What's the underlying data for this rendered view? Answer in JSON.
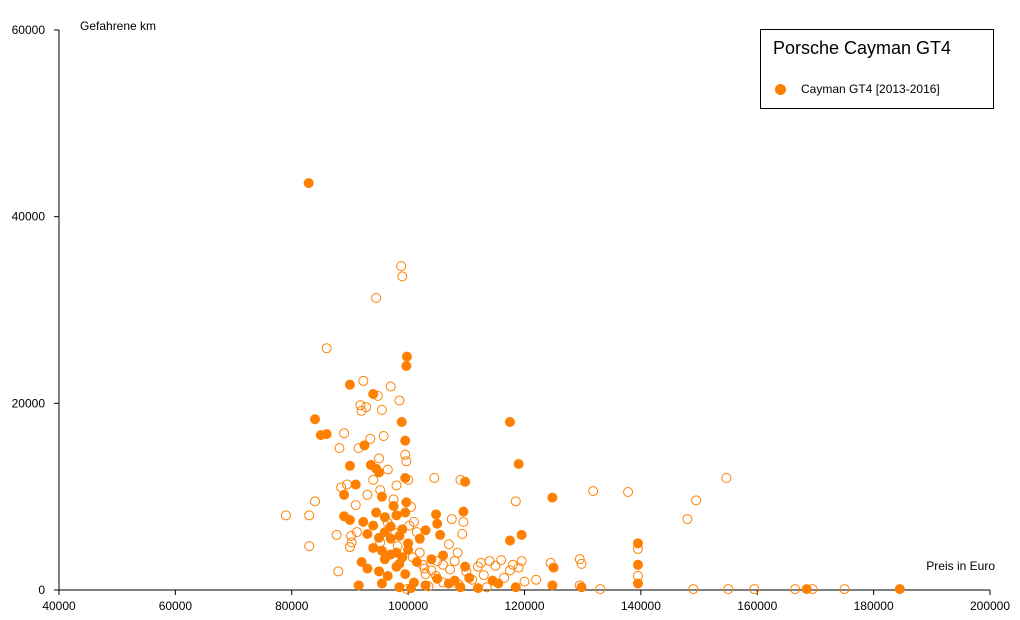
{
  "colors": {
    "series": "#ff8000",
    "axis": "#000000",
    "background": "#ffffff"
  },
  "chart_data": {
    "type": "scatter",
    "title": "Porsche Cayman GT4",
    "xlabel": "Preis in Euro",
    "ylabel": "Gefahrene km",
    "xlim": [
      40000,
      200000
    ],
    "ylim": [
      0,
      60000
    ],
    "xticks": [
      "40000",
      "60000",
      "80000",
      "100000",
      "120000",
      "140000",
      "160000",
      "180000",
      "200000"
    ],
    "yticks": [
      "0",
      "20000",
      "40000",
      "60000"
    ],
    "grid": false,
    "legend_position": "top-right",
    "series": [
      {
        "name": "Cayman GT4 [2013-2016]",
        "color": "#ff8000",
        "points_filled": [
          [
            82900,
            43600
          ],
          [
            99800,
            25000
          ],
          [
            99700,
            24000
          ],
          [
            90000,
            22000
          ],
          [
            94000,
            21000
          ],
          [
            84000,
            18300
          ],
          [
            98900,
            18000
          ],
          [
            117500,
            18000
          ],
          [
            85000,
            16600
          ],
          [
            86000,
            16700
          ],
          [
            99500,
            16000
          ],
          [
            92500,
            15500
          ],
          [
            90000,
            13300
          ],
          [
            93600,
            13400
          ],
          [
            94500,
            13000
          ],
          [
            119000,
            13500
          ],
          [
            99500,
            12000
          ],
          [
            95000,
            12600
          ],
          [
            89000,
            10200
          ],
          [
            91000,
            11300
          ],
          [
            109800,
            11600
          ],
          [
            95500,
            10000
          ],
          [
            99700,
            9400
          ],
          [
            97500,
            9000
          ],
          [
            124800,
            9900
          ],
          [
            89000,
            7900
          ],
          [
            90000,
            7500
          ],
          [
            92300,
            7300
          ],
          [
            94000,
            6900
          ],
          [
            96000,
            7800
          ],
          [
            98000,
            8000
          ],
          [
            99500,
            8300
          ],
          [
            104800,
            8100
          ],
          [
            105000,
            7100
          ],
          [
            109500,
            8400
          ],
          [
            93000,
            6000
          ],
          [
            95000,
            5600
          ],
          [
            96000,
            6200
          ],
          [
            97000,
            5500
          ],
          [
            98500,
            5800
          ],
          [
            100000,
            5000
          ],
          [
            102000,
            5500
          ],
          [
            103000,
            6400
          ],
          [
            105500,
            5900
          ],
          [
            117500,
            5300
          ],
          [
            119500,
            5900
          ],
          [
            94000,
            4500
          ],
          [
            95500,
            4200
          ],
          [
            97000,
            3800
          ],
          [
            98000,
            4000
          ],
          [
            99000,
            3500
          ],
          [
            101500,
            3000
          ],
          [
            104000,
            3300
          ],
          [
            106000,
            3700
          ],
          [
            108000,
            1000
          ],
          [
            109800,
            2500
          ],
          [
            114500,
            1000
          ],
          [
            125000,
            2400
          ],
          [
            139500,
            5000
          ],
          [
            139500,
            2700
          ],
          [
            93000,
            2300
          ],
          [
            95000,
            2000
          ],
          [
            96500,
            1500
          ],
          [
            98000,
            2500
          ],
          [
            99500,
            1700
          ],
          [
            101000,
            800
          ],
          [
            103000,
            500
          ],
          [
            105000,
            1200
          ],
          [
            107000,
            700
          ],
          [
            109000,
            300
          ],
          [
            110500,
            1300
          ],
          [
            112000,
            200
          ],
          [
            115500,
            700
          ],
          [
            118500,
            300
          ],
          [
            124800,
            500
          ],
          [
            129800,
            300
          ],
          [
            139500,
            700
          ],
          [
            91500,
            500
          ],
          [
            95500,
            700
          ],
          [
            98500,
            300
          ],
          [
            100500,
            200
          ],
          [
            168500,
            100
          ],
          [
            184500,
            100
          ],
          [
            97000,
            6800
          ],
          [
            99000,
            6500
          ],
          [
            96000,
            3300
          ],
          [
            100000,
            4300
          ],
          [
            92000,
            3000
          ],
          [
            94500,
            8300
          ],
          [
            98500,
            2800
          ]
        ],
        "points_hollow": [
          [
            79000,
            8000
          ],
          [
            83000,
            8000
          ],
          [
            83000,
            4700
          ],
          [
            84000,
            9500
          ],
          [
            86000,
            25900
          ],
          [
            87700,
            5900
          ],
          [
            88000,
            2000
          ],
          [
            88200,
            15200
          ],
          [
            88500,
            11000
          ],
          [
            89000,
            16800
          ],
          [
            89500,
            11300
          ],
          [
            90000,
            4600
          ],
          [
            90200,
            5800
          ],
          [
            90300,
            5100
          ],
          [
            91000,
            9100
          ],
          [
            91200,
            6200
          ],
          [
            91500,
            15200
          ],
          [
            91800,
            19800
          ],
          [
            92000,
            19200
          ],
          [
            92300,
            22400
          ],
          [
            92800,
            19600
          ],
          [
            93000,
            10200
          ],
          [
            93500,
            16200
          ],
          [
            94000,
            11800
          ],
          [
            94500,
            31300
          ],
          [
            94800,
            20800
          ],
          [
            95000,
            14100
          ],
          [
            95200,
            10700
          ],
          [
            95500,
            19300
          ],
          [
            95800,
            16500
          ],
          [
            96500,
            12900
          ],
          [
            97000,
            21800
          ],
          [
            97500,
            9700
          ],
          [
            98000,
            11200
          ],
          [
            98500,
            20300
          ],
          [
            98800,
            34700
          ],
          [
            99000,
            33600
          ],
          [
            99500,
            14500
          ],
          [
            99700,
            13800
          ],
          [
            100000,
            11800
          ],
          [
            100500,
            8900
          ],
          [
            101000,
            7300
          ],
          [
            101500,
            6200
          ],
          [
            102000,
            4000
          ],
          [
            102500,
            2700
          ],
          [
            103000,
            1700
          ],
          [
            104000,
            2100
          ],
          [
            104500,
            12000
          ],
          [
            105000,
            3100
          ],
          [
            106000,
            2700
          ],
          [
            107000,
            4900
          ],
          [
            107500,
            7600
          ],
          [
            108000,
            3100
          ],
          [
            108500,
            4000
          ],
          [
            109000,
            11800
          ],
          [
            109300,
            6000
          ],
          [
            109500,
            7300
          ],
          [
            110000,
            2000
          ],
          [
            111000,
            1100
          ],
          [
            112000,
            2500
          ],
          [
            112500,
            2900
          ],
          [
            113000,
            1600
          ],
          [
            114000,
            3100
          ],
          [
            115000,
            2600
          ],
          [
            116000,
            3200
          ],
          [
            116500,
            1300
          ],
          [
            117500,
            2100
          ],
          [
            118000,
            2700
          ],
          [
            118500,
            9500
          ],
          [
            119000,
            2400
          ],
          [
            119500,
            3100
          ],
          [
            120000,
            900
          ],
          [
            122000,
            1100
          ],
          [
            124500,
            2900
          ],
          [
            129500,
            3300
          ],
          [
            129800,
            2800
          ],
          [
            131800,
            10600
          ],
          [
            133000,
            100
          ],
          [
            137800,
            10500
          ],
          [
            139500,
            4400
          ],
          [
            139500,
            1500
          ],
          [
            148000,
            7600
          ],
          [
            149000,
            100
          ],
          [
            149500,
            9600
          ],
          [
            155000,
            100
          ],
          [
            159500,
            100
          ],
          [
            166500,
            100
          ],
          [
            169500,
            100
          ],
          [
            175000,
            100
          ],
          [
            154700,
            12000
          ],
          [
            106000,
            800
          ],
          [
            103500,
            400
          ],
          [
            113500,
            300
          ],
          [
            99800,
            100
          ],
          [
            129500,
            500
          ],
          [
            96500,
            7200
          ],
          [
            97800,
            6100
          ],
          [
            100200,
            6900
          ],
          [
            95200,
            5100
          ],
          [
            98200,
            4700
          ],
          [
            100800,
            3500
          ],
          [
            102800,
            2300
          ],
          [
            104800,
            1500
          ],
          [
            107200,
            2200
          ],
          [
            108700,
            600
          ]
        ]
      }
    ]
  }
}
